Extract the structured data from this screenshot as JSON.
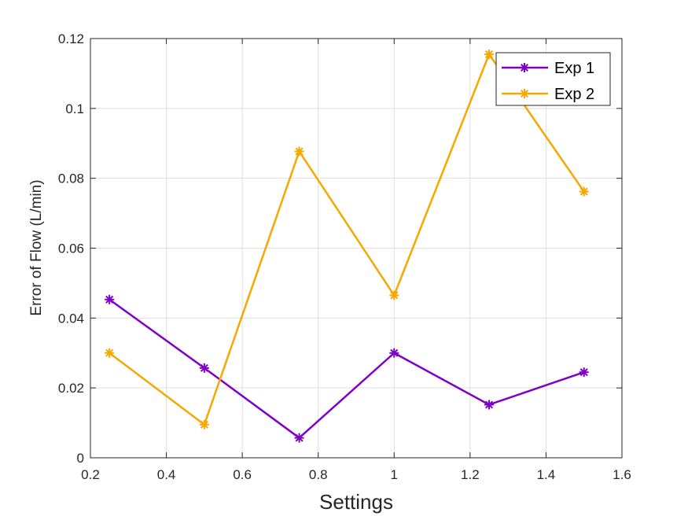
{
  "chart_data": {
    "type": "line",
    "title": "",
    "xlabel": "Settings",
    "ylabel": "Error of Flow (L/min)",
    "xlim": [
      0.2,
      1.6
    ],
    "ylim": [
      0,
      0.12
    ],
    "xticks": [
      0.2,
      0.4,
      0.6,
      0.8,
      1.0,
      1.2,
      1.4,
      1.6
    ],
    "xtick_labels": [
      "0.2",
      "0.4",
      "0.6",
      "0.8",
      "1",
      "1.2",
      "1.4",
      "1.6"
    ],
    "yticks": [
      0,
      0.02,
      0.04,
      0.06,
      0.08,
      0.1,
      0.12
    ],
    "ytick_labels": [
      "0",
      "0.02",
      "0.04",
      "0.06",
      "0.08",
      "0.1",
      "0.12"
    ],
    "grid": true,
    "legend_position": "top-right",
    "x": [
      0.25,
      0.5,
      0.75,
      1.0,
      1.25,
      1.5
    ],
    "series": [
      {
        "name": "Exp 1",
        "color": "#7E00C8",
        "marker": "asterisk",
        "values": [
          0.0453,
          0.0257,
          0.0057,
          0.03,
          0.0152,
          0.0245
        ]
      },
      {
        "name": "Exp 2",
        "color": "#F5A800",
        "marker": "asterisk",
        "values": [
          0.03,
          0.0095,
          0.0877,
          0.0465,
          0.1155,
          0.0762
        ]
      }
    ]
  }
}
